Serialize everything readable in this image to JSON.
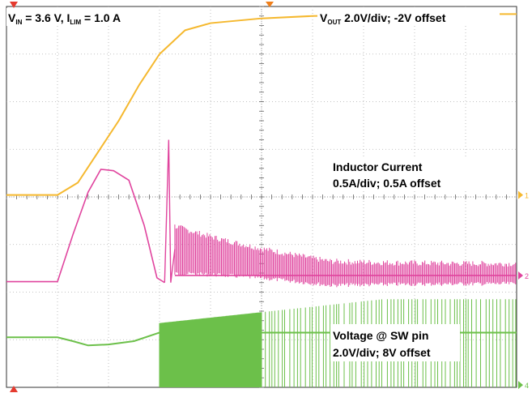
{
  "chart_data": {
    "type": "line",
    "grid": true,
    "divisions": {
      "x": 10,
      "y": 8
    },
    "annotations": {
      "top_left": {
        "v": "V",
        "v_sub": "IN",
        "mid": " = 3.6 V, I",
        "i_sub": "LIM",
        "tail": " = 1.0 A"
      },
      "vout": {
        "v": "V",
        "v_sub": "OUT",
        "tail": " 2.0V/div; -2V offset"
      },
      "inductor": {
        "line1": "Inductor Current",
        "line2": "0.5A/div; 0.5A offset"
      },
      "sw": {
        "line1": "Voltage @ SW pin",
        "line2": "2.0V/div; 8V offset"
      }
    },
    "markers": {
      "ch1": "1",
      "ch2": "2",
      "ch4": "4"
    },
    "series": [
      {
        "key": "vout",
        "color": "#f5b82e",
        "x": [
          0,
          1.0,
          1.4,
          1.8,
          2.2,
          2.6,
          3.0,
          3.5,
          4.0,
          5.0,
          6.0,
          7.0,
          8.0,
          9.0,
          10.0
        ],
        "y": [
          4.04,
          4.04,
          4.3,
          4.95,
          5.6,
          6.35,
          7.0,
          7.5,
          7.65,
          7.75,
          7.8,
          7.82,
          7.83,
          7.84,
          7.84
        ]
      },
      {
        "key": "inductor",
        "color": "#e0449e",
        "x": [
          0,
          1.0,
          1.3,
          1.6,
          1.85,
          2.1,
          2.4,
          2.7,
          2.95,
          3.1
        ],
        "y": [
          2.22,
          2.22,
          3.2,
          4.1,
          4.58,
          4.55,
          4.35,
          3.4,
          2.3,
          2.2
        ],
        "spike": {
          "x": 3.18,
          "y_low": 2.2,
          "y_high": 5.2
        },
        "ringing": {
          "x_start": 3.3,
          "x_end": 10.0,
          "center_start": 2.8,
          "center_end": 2.35
        }
      },
      {
        "key": "sw",
        "color": "#6cc04a",
        "x": [
          0,
          1.0,
          1.3,
          1.6,
          2.0,
          2.5,
          3.0
        ],
        "y": [
          1.05,
          1.05,
          0.97,
          0.88,
          0.9,
          0.97,
          1.15
        ],
        "switching": {
          "x_start": 3.0,
          "x_end": 10.0,
          "dense_until": 5.0,
          "high_start": 1.35,
          "high_end": 1.85,
          "low": 0.0
        }
      }
    ]
  }
}
